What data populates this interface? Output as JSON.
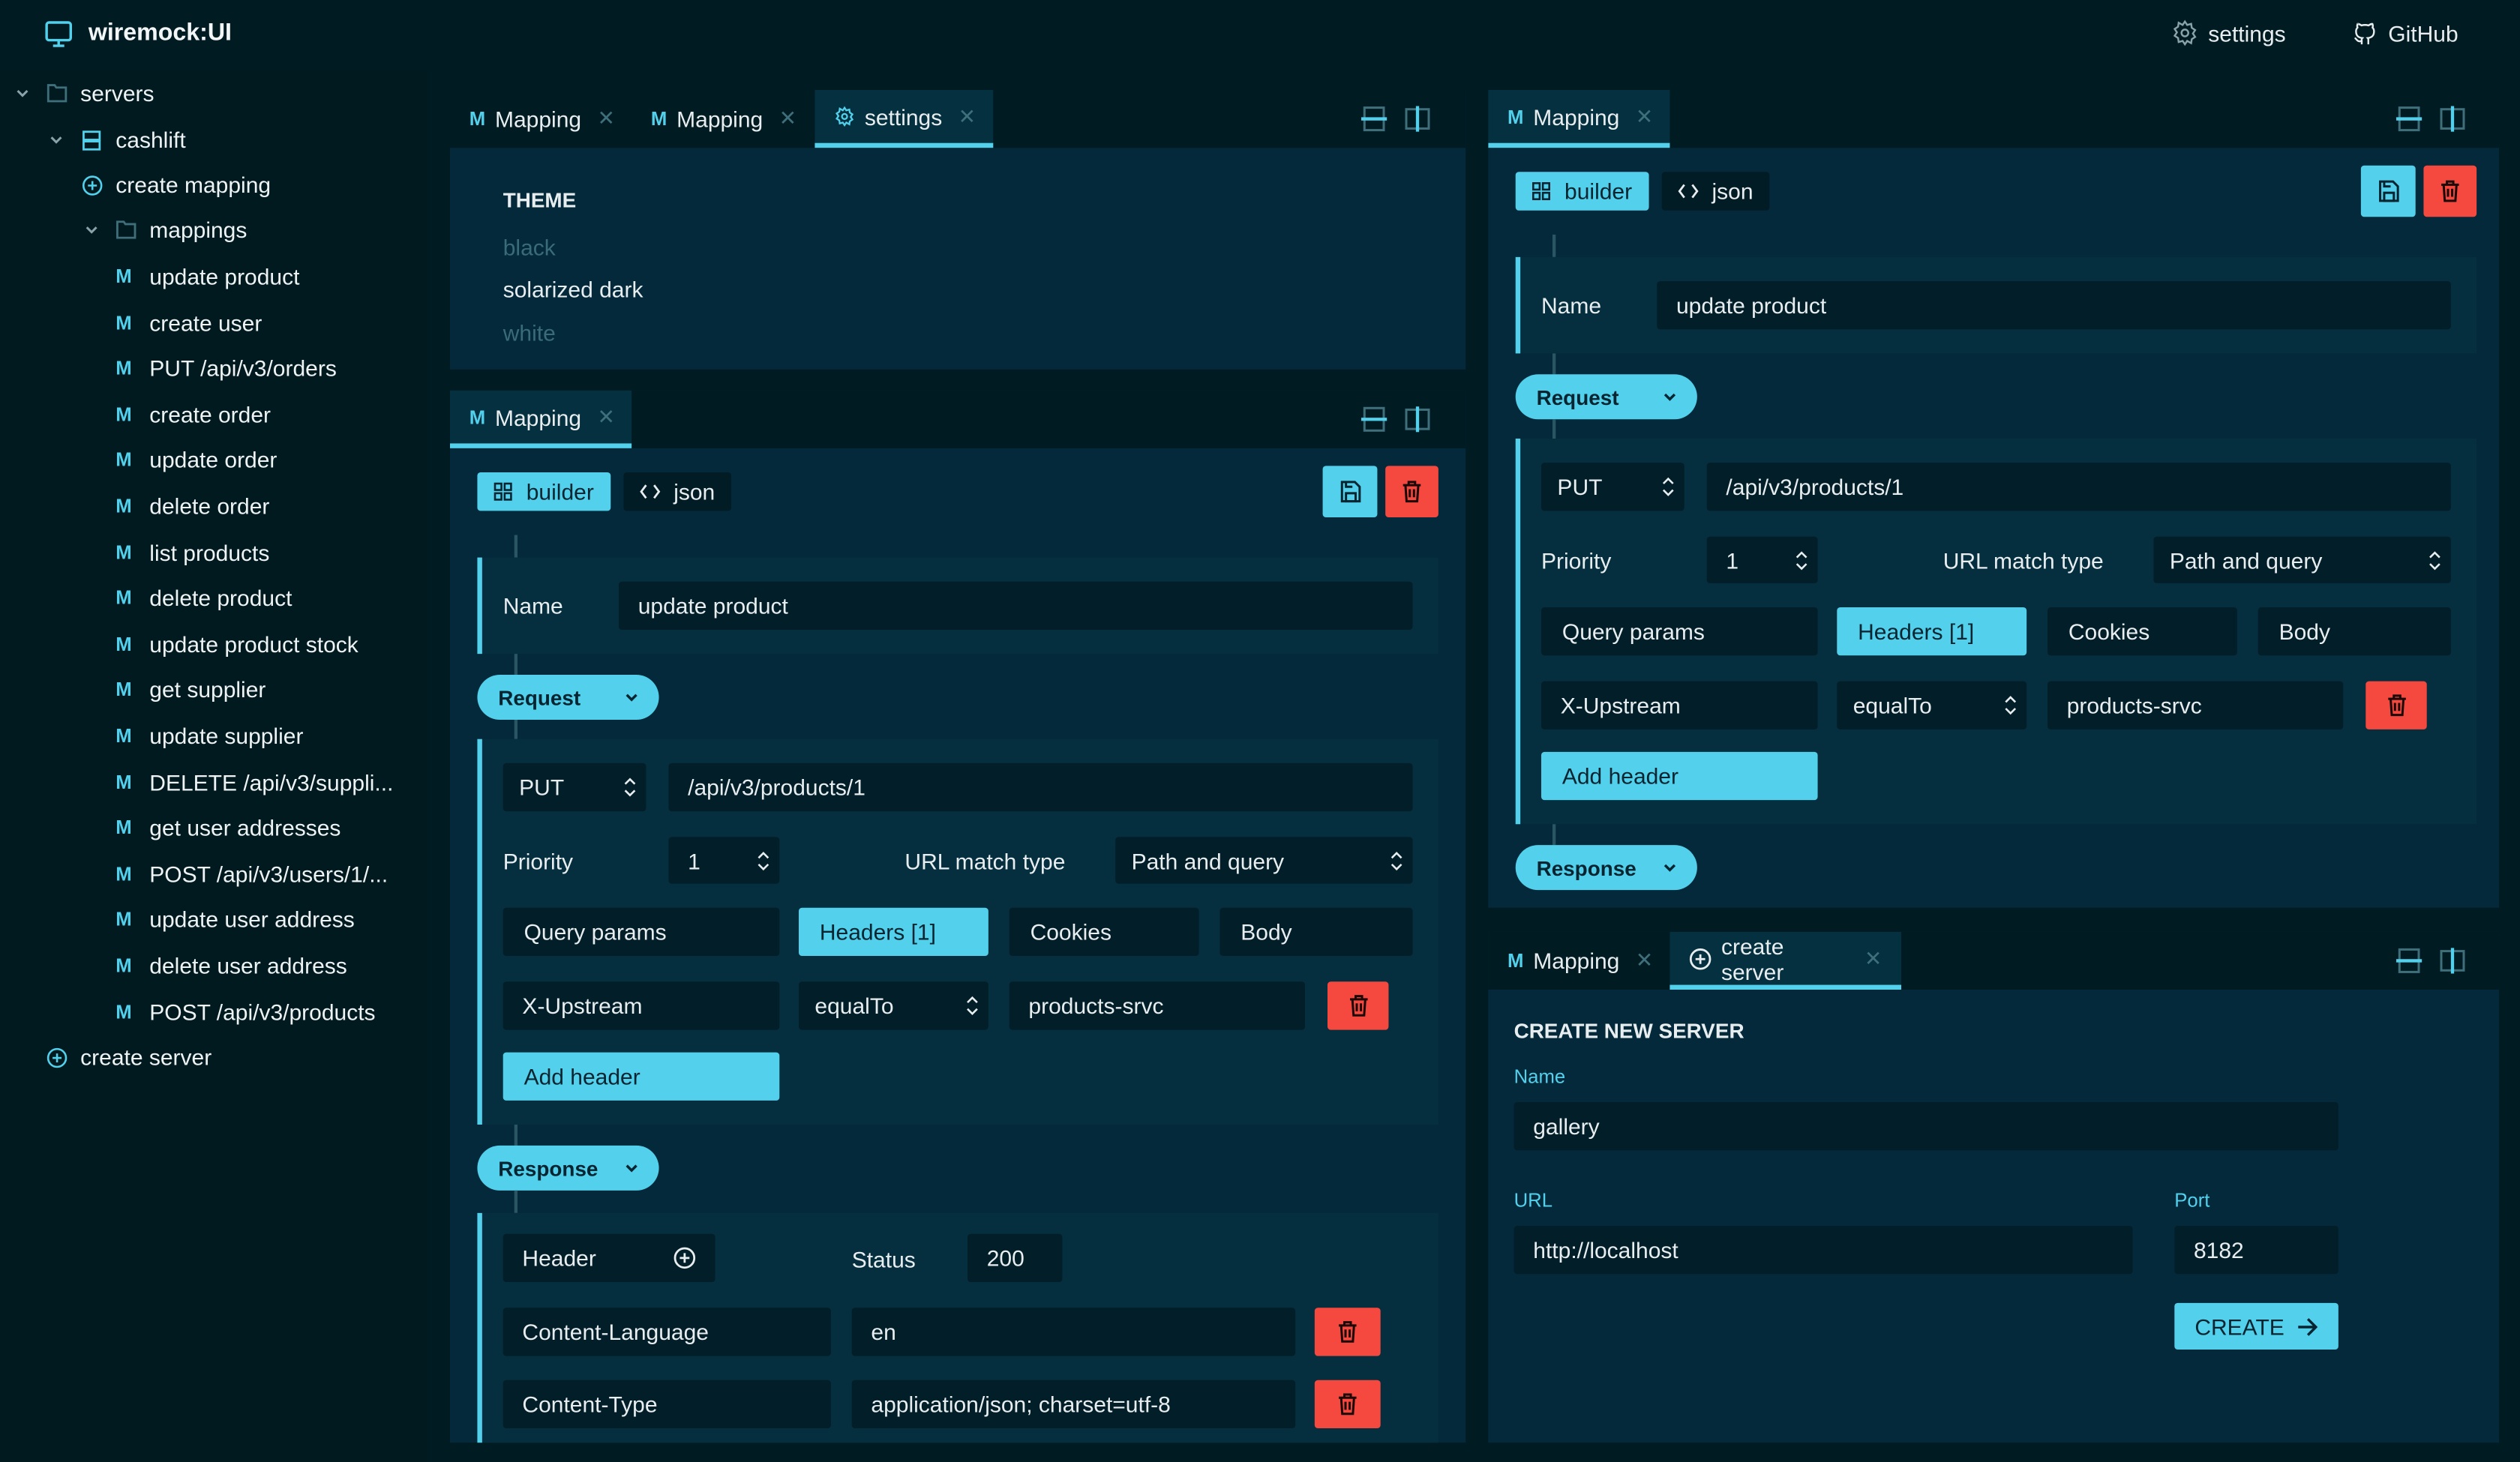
{
  "app": {
    "title": "wiremock:UI",
    "nav": {
      "settings": "settings",
      "github": "GitHub"
    }
  },
  "colors": {
    "accent": "#52d0ec",
    "danger": "#f5483f",
    "background": "#011b22",
    "panel": "#03293a"
  },
  "sidebar": {
    "servers_label": "servers",
    "server": {
      "name": "cashlift",
      "create_mapping": "create mapping",
      "mappings_folder": "mappings",
      "mappings": [
        "update product",
        "create user",
        "PUT /api/v3/orders",
        "create order",
        "update order",
        "delete order",
        "list products",
        "delete product",
        "update product stock",
        "get supplier",
        "update supplier",
        "DELETE /api/v3/suppli...",
        "get user addresses",
        "POST /api/v3/users/1/...",
        "update user address",
        "delete user address",
        "POST /api/v3/products"
      ]
    },
    "create_server": "create server"
  },
  "settings_panel": {
    "tabs": [
      {
        "label": "Mapping"
      },
      {
        "label": "Mapping"
      },
      {
        "label": "settings",
        "active": true
      }
    ],
    "theme_heading": "THEME",
    "themes": [
      {
        "label": "black",
        "selected": false
      },
      {
        "label": "solarized dark",
        "selected": true
      },
      {
        "label": "white",
        "selected": false
      }
    ]
  },
  "mapping_panel": {
    "tabs": [
      {
        "label": "Mapping",
        "active": true
      }
    ],
    "editor": {
      "builder_label": "builder",
      "json_label": "json",
      "name_label": "Name",
      "name_value": "update product",
      "request_label": "Request",
      "method": "PUT",
      "url": "/api/v3/products/1",
      "priority_label": "Priority",
      "priority": "1",
      "url_match_type_label": "URL match type",
      "url_match_type": "Path and query",
      "request_tabs": [
        "Query params",
        "Headers [1]",
        "Cookies",
        "Body"
      ],
      "headers": [
        {
          "key": "X-Upstream",
          "operator": "equalTo",
          "value": "products-srvc"
        }
      ],
      "add_header_label": "Add header",
      "response_label": "Response",
      "response": {
        "header_label": "Header",
        "status_label": "Status",
        "status": "200",
        "headers": [
          {
            "key": "Content-Language",
            "value": "en"
          },
          {
            "key": "Content-Type",
            "value": "application/json; charset=utf-8"
          }
        ]
      }
    }
  },
  "right_mapping_panel": {
    "tabs": [
      {
        "label": "Mapping",
        "active": true
      }
    ],
    "editor": {
      "builder_label": "builder",
      "json_label": "json",
      "name_label": "Name",
      "name_value": "update product",
      "request_label": "Request",
      "method": "PUT",
      "url": "/api/v3/products/1",
      "priority_label": "Priority",
      "priority": "1",
      "url_match_type_label": "URL match type",
      "url_match_type": "Path and query",
      "request_tabs": [
        "Query params",
        "Headers [1]",
        "Cookies",
        "Body"
      ],
      "headers": [
        {
          "key": "X-Upstream",
          "operator": "equalTo",
          "value": "products-srvc"
        }
      ],
      "add_header_label": "Add header",
      "response_label": "Response"
    }
  },
  "server_panel": {
    "tabs": [
      {
        "label": "Mapping"
      },
      {
        "label": "create server",
        "active": true
      }
    ],
    "heading": "CREATE NEW SERVER",
    "name_label": "Name",
    "name_value": "gallery",
    "url_label": "URL",
    "url_value": "http://localhost",
    "port_label": "Port",
    "port_value": "8182",
    "create_label": "CREATE"
  }
}
